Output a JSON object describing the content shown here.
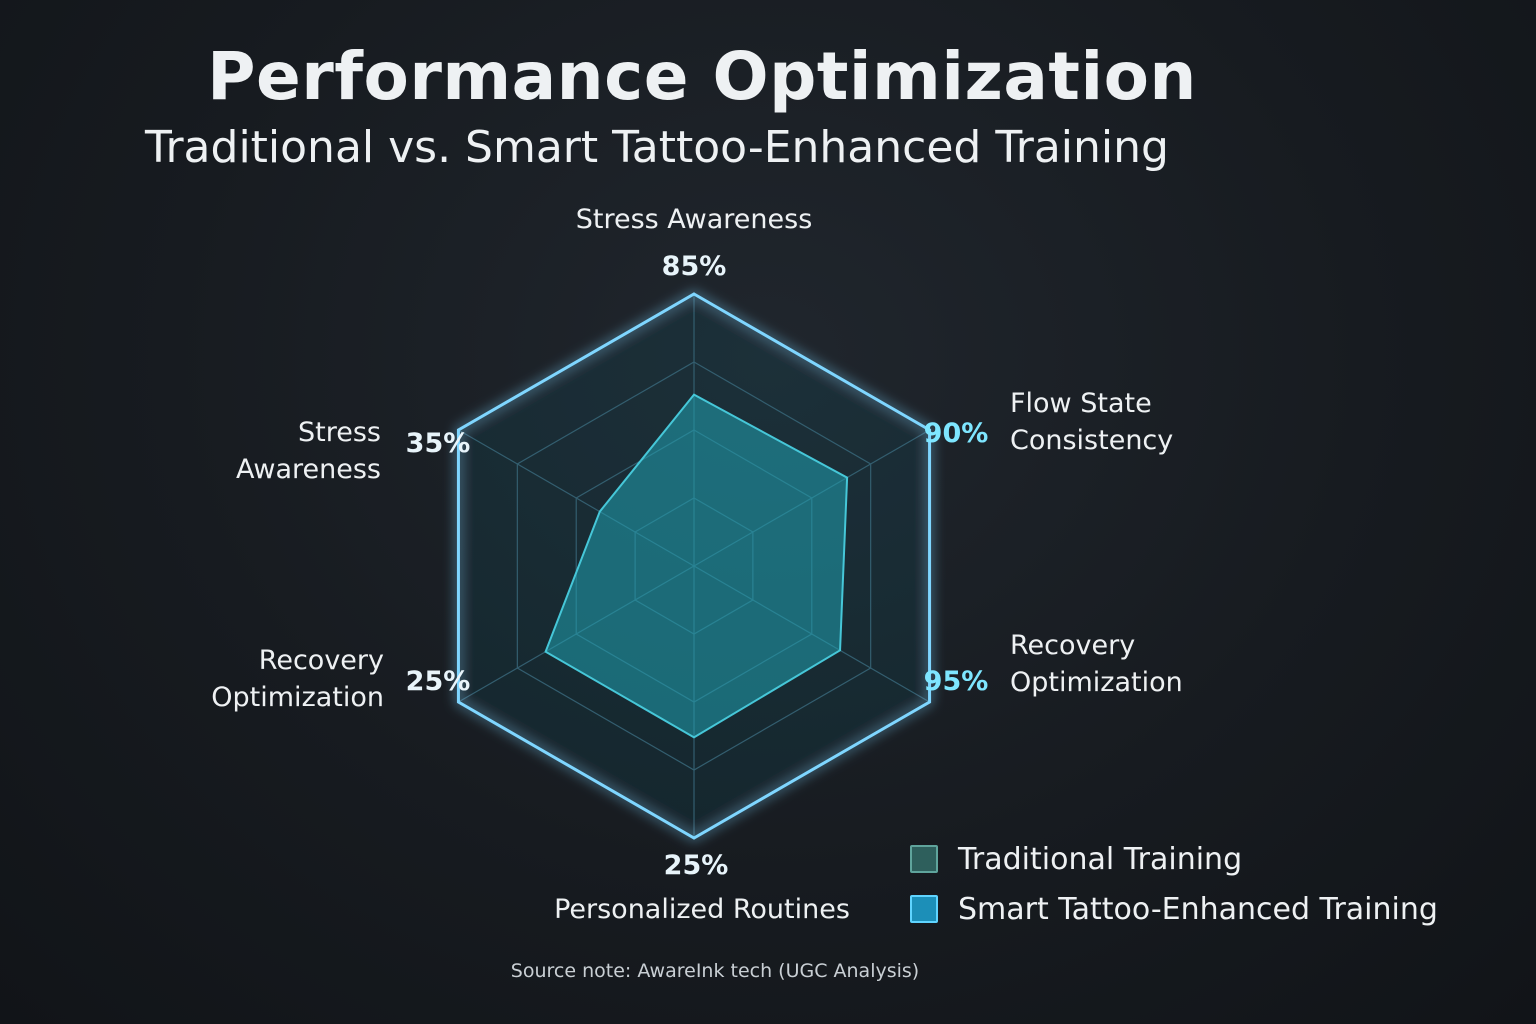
{
  "title": "Performance Optimization",
  "subtitle": "Traditional vs. Smart Tattoo-Enhanced Training",
  "source_note": "Source note: AwareInk tech (UGC Analysis)",
  "colors": {
    "frame": "#7fd6ff",
    "traditional": "#2e5f5c",
    "smart": "#1c8fb8",
    "fill": "#25a6b5",
    "value_accent": "#7ee6ff"
  },
  "chart_data": {
    "type": "radar",
    "axes": [
      {
        "label_lines": [
          "Stress Awareness"
        ],
        "value_label": "85%"
      },
      {
        "label_lines": [
          "Flow State",
          "Consistency"
        ],
        "value_label": "90%"
      },
      {
        "label_lines": [
          "Recovery",
          "Optimization"
        ],
        "value_label": "95%"
      },
      {
        "label_lines": [
          "Personalized Routines"
        ],
        "value_label": "25%"
      },
      {
        "label_lines": [
          "Recovery",
          "Optimization"
        ],
        "value_label": "25%"
      },
      {
        "label_lines": [
          "Stress",
          "Awareness"
        ],
        "value_label": "35%"
      }
    ],
    "max": 100,
    "series": [
      {
        "name": "Smart Tattoo-Enhanced Training",
        "values": [
          63,
          65,
          62,
          63,
          63,
          40
        ]
      }
    ],
    "legend": [
      {
        "name": "Traditional Training",
        "color": "#2e5f5c"
      },
      {
        "name": "Smart Tattoo-Enhanced Training",
        "color": "#1c8fb8"
      }
    ],
    "legend_position": "bottom-right",
    "grid": true
  }
}
